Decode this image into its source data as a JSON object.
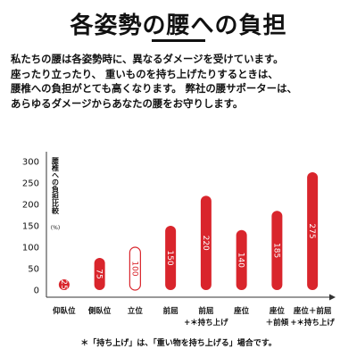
{
  "title": "各姿勢の腰への負担",
  "description": [
    "私たちの腰は各姿勢時に、異なるダメージを受けています。",
    "座ったり立ったり、 重いものを持ち上げたりするときは、",
    "腰椎への負担がとても高くなります。 弊社の腰サポーターは、",
    "あらゆるダメージからあなたの腰をお守りします。"
  ],
  "footnote": "＊「持ち上げ」は、「重い物を持ち上げる」場合です。",
  "colors": {
    "bar": "#d9252c",
    "highlight_outline": "#d9252c",
    "text": "#111111",
    "axis": "#333333"
  },
  "chart_data": {
    "type": "bar",
    "ylabel": "腰椎への負担比較",
    "yunit": "(%)",
    "ylim": [
      0,
      300
    ],
    "yticks": [
      0,
      50,
      100,
      150,
      200,
      250,
      300
    ],
    "categories": [
      {
        "line1": "仰臥位",
        "line2": ""
      },
      {
        "line1": "側臥位",
        "line2": ""
      },
      {
        "line1": "立位",
        "line2": ""
      },
      {
        "line1": "前屈",
        "line2": ""
      },
      {
        "line1": "前屈",
        "line2": "+＊持ち上げ"
      },
      {
        "line1": "座位",
        "line2": ""
      },
      {
        "line1": "座位",
        "line2": "＋前傾"
      },
      {
        "line1": "座位＋前屈",
        "line2": "+＊持ち上げ"
      }
    ],
    "values": [
      25,
      75,
      100,
      150,
      220,
      140,
      185,
      275
    ],
    "value_labels": [
      "25",
      "75",
      "100",
      "150",
      "220",
      "140",
      "185",
      "275"
    ],
    "highlight_index": 2,
    "grid": false
  }
}
